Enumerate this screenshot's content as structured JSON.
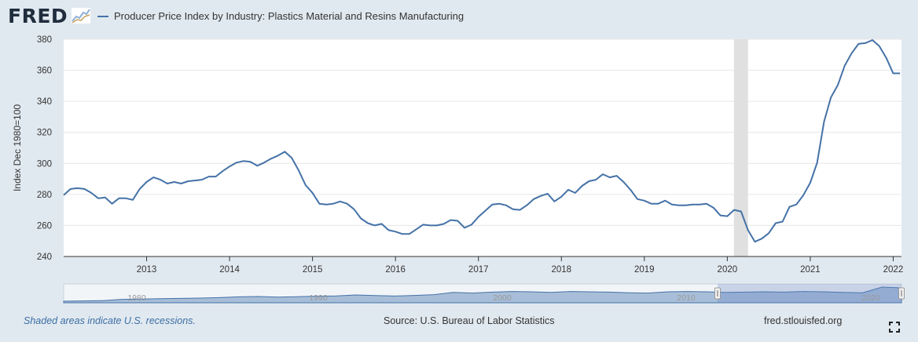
{
  "header": {
    "logo_text": "FRED",
    "series_title": "Producer Price Index by Industry: Plastics Material and Resins Manufacturing"
  },
  "footer": {
    "recession_note": "Shaded areas indicate U.S. recessions.",
    "source": "Source: U.S. Bureau of Labor Statistics",
    "site": "fred.stlouisfed.org"
  },
  "colors": {
    "line": "#4572a7",
    "recession": "#e0e0e0",
    "background": "#e1e9f0",
    "plot_background": "#ffffff",
    "navigator_fill": "#a8bed8"
  },
  "icons": {
    "logo_badge": "chart-line-icon",
    "fullscreen": "expand-icon"
  },
  "chart_data": {
    "type": "line",
    "title": "",
    "xlabel": "",
    "ylabel": "Index Dec 1980=100",
    "xlim": [
      2012.0,
      2022.1
    ],
    "ylim": [
      240,
      380
    ],
    "x_ticks": [
      2013,
      2014,
      2015,
      2016,
      2017,
      2018,
      2019,
      2020,
      2021,
      2022
    ],
    "x_tick_labels": [
      "2013",
      "2014",
      "2015",
      "2016",
      "2017",
      "2018",
      "2019",
      "2020",
      "2021",
      "2022"
    ],
    "y_ticks": [
      240,
      260,
      280,
      300,
      320,
      340,
      360,
      380
    ],
    "y_tick_labels": [
      "240",
      "260",
      "280",
      "300",
      "320",
      "340",
      "360",
      "380"
    ],
    "grid": true,
    "recessions": [
      [
        2020.08,
        2020.25
      ]
    ],
    "series": [
      {
        "name": "Producer Price Index by Industry: Plastics Material and Resins Manufacturing",
        "x_start": 2012.0,
        "step": 0.08333,
        "values": [
          279.5,
          283.5,
          284,
          283.5,
          281,
          277.5,
          278,
          274,
          277.5,
          277.5,
          276.5,
          283.5,
          288,
          291,
          289.5,
          287,
          288,
          287,
          288.5,
          289,
          289.5,
          291.5,
          291.5,
          295,
          298,
          300.5,
          301.5,
          301,
          298.5,
          300.5,
          303,
          305,
          307.5,
          303.5,
          295.5,
          286,
          281,
          274,
          273.5,
          274,
          275.5,
          274,
          270.5,
          264.5,
          261.5,
          260,
          261,
          257,
          256,
          254.5,
          254.5,
          257.5,
          260.5,
          260,
          260,
          261,
          263.5,
          263,
          258.5,
          260.5,
          265.5,
          269.5,
          273.5,
          274,
          273,
          270.5,
          270,
          273,
          277,
          279,
          280.5,
          275.5,
          278.5,
          283,
          281,
          285.5,
          288.5,
          289.5,
          293,
          291,
          292,
          288,
          283,
          277,
          276,
          274,
          274,
          276,
          273.5,
          273,
          273,
          273.5,
          273.5,
          274,
          271.5,
          266.5,
          266,
          270,
          269,
          257,
          249.5,
          251.5,
          255,
          261.5,
          262.5,
          272,
          273.5,
          279.5,
          287.5,
          300.5,
          327,
          342.5,
          350.5,
          363,
          371,
          377,
          377.5,
          379.5,
          375.5,
          368,
          358,
          358
        ]
      }
    ],
    "navigator": {
      "x_tick_labels": [
        "1980",
        "1990",
        "2000",
        "2010",
        "2020"
      ]
    }
  }
}
